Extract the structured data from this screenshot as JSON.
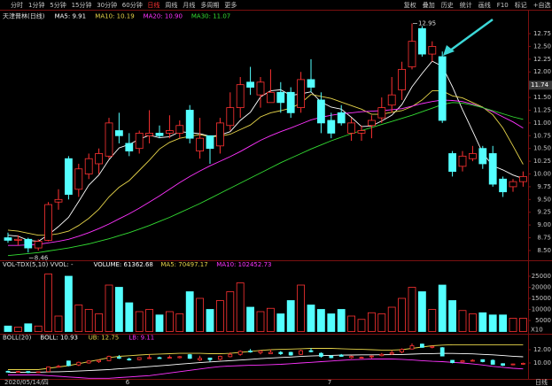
{
  "toolbar": {
    "left": [
      "分时",
      "1分钟",
      "5分钟",
      "15分钟",
      "30分钟",
      "60分钟",
      "日线",
      "周线",
      "月线",
      "多周期",
      "更多"
    ],
    "active": 6,
    "right": [
      "复权",
      "叠加",
      "历史",
      "统计",
      "画线",
      "F10",
      "标记",
      "+自选"
    ]
  },
  "period_label": "日线",
  "chart_data": [
    {
      "type": "candlestick",
      "title": "天津普林(日线)",
      "indicators": [
        {
          "text": "MA5: 9.91",
          "color": "#ffffff"
        },
        {
          "text": "MA10: 10.19",
          "color": "#e6d44a"
        },
        {
          "text": "MA20: 10.90",
          "color": "#ff33ff"
        },
        {
          "text": "MA30: 11.07",
          "color": "#33dd33"
        }
      ],
      "categories": [
        "2020/05/14/四",
        null,
        null,
        null,
        null,
        null,
        null,
        null,
        null,
        null,
        null,
        null,
        "6",
        null,
        null,
        null,
        null,
        null,
        null,
        null,
        null,
        null,
        null,
        null,
        null,
        null,
        null,
        null,
        null,
        null,
        null,
        null,
        "7",
        null,
        null,
        null,
        null,
        null,
        null,
        null,
        null,
        null,
        null,
        null,
        null,
        null,
        null,
        null,
        null,
        null,
        null,
        null
      ],
      "open": [
        8.75,
        8.7,
        8.72,
        8.55,
        8.7,
        9.45,
        10.3,
        9.7,
        10.0,
        10.2,
        10.35,
        10.85,
        10.6,
        10.5,
        10.75,
        10.8,
        10.8,
        10.8,
        11.25,
        10.45,
        10.75,
        10.55,
        10.95,
        11.3,
        11.8,
        11.55,
        11.4,
        11.6,
        11.6,
        11.3,
        11.85,
        11.45,
        11.05,
        11.2,
        10.8,
        10.8,
        10.95,
        11.1,
        11.35,
        11.65,
        12.1,
        12.85,
        12.35,
        12.3,
        10.4,
        10.15,
        10.3,
        10.5,
        10.4,
        9.9,
        9.75,
        9.85
      ],
      "high": [
        8.85,
        8.8,
        8.75,
        8.72,
        9.45,
        9.7,
        10.35,
        10.2,
        10.4,
        10.5,
        11.1,
        11.2,
        10.8,
        10.85,
        11.25,
        10.95,
        11.15,
        11.05,
        11.35,
        11.1,
        10.75,
        11.1,
        11.6,
        11.9,
        12.1,
        11.9,
        12.05,
        11.8,
        11.7,
        12.0,
        12.25,
        11.6,
        11.2,
        11.35,
        11.1,
        10.95,
        11.15,
        11.5,
        11.9,
        12.2,
        12.95,
        12.9,
        12.6,
        12.4,
        10.45,
        10.45,
        10.55,
        10.55,
        10.55,
        9.95,
        9.9,
        10.05
      ],
      "low": [
        8.65,
        8.6,
        8.46,
        8.5,
        8.68,
        9.3,
        9.5,
        9.55,
        9.9,
        10.0,
        10.3,
        10.6,
        10.35,
        10.4,
        10.6,
        10.7,
        10.7,
        10.7,
        10.6,
        10.3,
        10.2,
        10.4,
        10.85,
        11.1,
        11.55,
        11.3,
        11.4,
        11.2,
        11.1,
        11.2,
        11.6,
        10.8,
        10.7,
        10.95,
        10.65,
        10.65,
        10.7,
        11.0,
        11.2,
        11.45,
        12.05,
        12.3,
        12.2,
        11.0,
        9.95,
        10.05,
        10.25,
        10.1,
        9.75,
        9.55,
        9.65,
        9.75
      ],
      "close": [
        8.7,
        8.72,
        8.55,
        8.68,
        9.4,
        9.5,
        9.6,
        10.1,
        10.3,
        10.4,
        11.0,
        10.75,
        10.45,
        10.8,
        10.8,
        10.75,
        10.85,
        10.95,
        10.7,
        10.7,
        10.5,
        11.0,
        11.3,
        11.75,
        11.7,
        11.8,
        11.6,
        11.4,
        11.2,
        11.85,
        11.7,
        11.0,
        10.8,
        11.0,
        11.0,
        10.85,
        11.05,
        11.3,
        11.55,
        12.05,
        12.6,
        12.35,
        12.5,
        11.05,
        10.05,
        10.35,
        10.4,
        10.2,
        9.8,
        9.65,
        9.85,
        9.95
      ],
      "up_color": "#ff3232",
      "down_color": "#54ffff",
      "series": [
        {
          "color": "#ffffff",
          "values": [
            8.8,
            8.78,
            8.7,
            8.68,
            8.81,
            8.97,
            9.15,
            9.46,
            9.78,
            9.98,
            10.28,
            10.51,
            10.58,
            10.68,
            10.76,
            10.71,
            10.73,
            10.83,
            10.81,
            10.79,
            10.74,
            10.76,
            10.83,
            11.05,
            11.21,
            11.51,
            11.63,
            11.65,
            11.54,
            11.57,
            11.61,
            11.41,
            11.31,
            11.27,
            11.11,
            10.93,
            10.94,
            11.04,
            11.15,
            11.36,
            11.71,
            11.97,
            12.21,
            12.11,
            11.71,
            11.26,
            10.84,
            10.41,
            10.16,
            10.08,
            9.98,
            9.91
          ]
        },
        {
          "color": "#e6d44a",
          "values": [
            8.9,
            8.88,
            8.84,
            8.8,
            8.8,
            8.83,
            8.88,
            8.99,
            9.13,
            9.31,
            9.55,
            9.74,
            9.87,
            10.07,
            10.27,
            10.49,
            10.62,
            10.7,
            10.74,
            10.77,
            10.73,
            10.74,
            10.78,
            10.87,
            10.96,
            11.12,
            11.2,
            11.24,
            11.29,
            11.39,
            11.56,
            11.52,
            11.48,
            11.41,
            11.34,
            11.27,
            11.17,
            11.17,
            11.21,
            11.24,
            11.32,
            11.45,
            11.63,
            11.63,
            11.53,
            11.49,
            11.4,
            11.31,
            11.16,
            10.9,
            10.55,
            10.19
          ]
        },
        {
          "color": "#ff33ff",
          "values": [
            8.6,
            8.6,
            8.61,
            8.62,
            8.65,
            8.68,
            8.72,
            8.78,
            8.85,
            8.93,
            9.02,
            9.12,
            9.22,
            9.33,
            9.45,
            9.57,
            9.7,
            9.83,
            9.95,
            10.06,
            10.16,
            10.25,
            10.34,
            10.44,
            10.55,
            10.66,
            10.75,
            10.83,
            10.9,
            10.98,
            11.06,
            11.11,
            11.15,
            11.18,
            11.2,
            11.22,
            11.23,
            11.24,
            11.26,
            11.28,
            11.33,
            11.38,
            11.42,
            11.45,
            11.44,
            11.42,
            11.37,
            11.3,
            11.22,
            11.12,
            11.02,
            10.9
          ]
        },
        {
          "color": "#33dd33",
          "values": [
            8.4,
            8.42,
            8.44,
            8.46,
            8.49,
            8.52,
            8.55,
            8.59,
            8.63,
            8.68,
            8.73,
            8.79,
            8.85,
            8.92,
            8.99,
            9.07,
            9.15,
            9.24,
            9.33,
            9.42,
            9.52,
            9.62,
            9.72,
            9.82,
            9.92,
            10.02,
            10.12,
            10.22,
            10.31,
            10.4,
            10.49,
            10.57,
            10.65,
            10.72,
            10.79,
            10.85,
            10.91,
            10.97,
            11.03,
            11.09,
            11.15,
            11.22,
            11.29,
            11.36,
            11.4,
            11.39,
            11.35,
            11.3,
            11.24,
            11.18,
            11.12,
            11.07
          ]
        }
      ],
      "ylim": [
        8.35,
        12.95
      ],
      "yticks": [
        {
          "value": 8.5,
          "label": "8.50"
        },
        8.75,
        {
          "value": 9,
          "label": "9.00"
        },
        9.25,
        {
          "value": 9.5,
          "label": "9.50"
        },
        9.75,
        {
          "value": 10,
          "label": "10.00"
        },
        10.25,
        {
          "value": 10.5,
          "label": "10.50"
        },
        10.75,
        {
          "value": 11,
          "label": "11.00"
        },
        11.25,
        {
          "value": 11.5,
          "label": "11.50"
        },
        11.75,
        {
          "value": 12,
          "label": "12.00"
        },
        12.25,
        {
          "value": 12.5,
          "label": "12.50"
        },
        12.75
      ],
      "last_price": 11.74,
      "high_label": "12.95",
      "low_label": "8.46"
    },
    {
      "type": "volume",
      "title": "VOL-TDX(5,10)  VVOL: -",
      "indicators": [
        {
          "text": "VOLUME: 61362.68",
          "color": "#ffffff"
        },
        {
          "text": "MA5: 70497.17",
          "color": "#e6d44a"
        },
        {
          "text": "MA10: 102452.73",
          "color": "#ff33ff"
        }
      ],
      "values": [
        2500,
        2000,
        3500,
        2500,
        26000,
        7000,
        25000,
        12000,
        10000,
        8000,
        21000,
        20000,
        13000,
        9000,
        10000,
        7500,
        9000,
        8000,
        18000,
        15000,
        10000,
        14000,
        18000,
        22000,
        11000,
        9000,
        10500,
        8000,
        14000,
        21000,
        12000,
        10000,
        8000,
        10000,
        7000,
        5500,
        8500,
        8000,
        11000,
        15000,
        20000,
        18000,
        10000,
        21000,
        14000,
        9500,
        8000,
        8500,
        7500,
        7500,
        6000,
        6000
      ],
      "ylim": [
        0,
        28000
      ],
      "yticks": [
        5000,
        10000,
        15000,
        20000,
        25000
      ],
      "unit_label": "X10"
    },
    {
      "type": "boll",
      "title": "BOLL(20)",
      "indicators": [
        {
          "text": "BOLL: 10.93",
          "color": "#ffffff"
        },
        {
          "text": "UB: 12.75",
          "color": "#e6d44a"
        },
        {
          "text": "LB: 9.11",
          "color": "#ff33ff"
        }
      ],
      "series": [
        {
          "color": "#ffffff",
          "values": [
            8.6,
            8.6,
            8.61,
            8.62,
            8.65,
            8.68,
            8.72,
            8.78,
            8.85,
            8.93,
            9.02,
            9.12,
            9.22,
            9.33,
            9.45,
            9.57,
            9.7,
            9.83,
            9.95,
            10.06,
            10.16,
            10.25,
            10.34,
            10.44,
            10.55,
            10.66,
            10.75,
            10.83,
            10.9,
            10.98,
            11.06,
            11.11,
            11.15,
            11.18,
            11.2,
            11.22,
            11.23,
            11.24,
            11.26,
            11.28,
            11.33,
            11.38,
            11.42,
            11.45,
            11.44,
            11.42,
            11.37,
            11.3,
            11.22,
            11.12,
            11.02,
            10.93
          ]
        },
        {
          "color": "#e6d44a",
          "values": [
            9.0,
            9.0,
            9.0,
            9.0,
            9.2,
            9.4,
            9.6,
            9.9,
            10.2,
            10.5,
            10.8,
            11.0,
            11.1,
            11.2,
            11.3,
            11.35,
            11.4,
            11.45,
            11.45,
            11.45,
            11.4,
            11.4,
            11.45,
            11.6,
            11.75,
            11.9,
            12.0,
            12.05,
            12.1,
            12.15,
            12.2,
            12.2,
            12.2,
            12.15,
            12.1,
            12.05,
            12.0,
            11.95,
            11.95,
            12.0,
            12.2,
            12.4,
            12.6,
            12.7,
            12.75,
            12.75,
            12.75,
            12.75,
            12.75,
            12.75,
            12.75,
            12.75
          ]
        },
        {
          "color": "#ff33ff",
          "values": [
            8.2,
            8.2,
            8.2,
            8.2,
            8.1,
            8.0,
            7.9,
            7.8,
            7.7,
            7.7,
            7.7,
            7.8,
            7.9,
            8.0,
            8.1,
            8.3,
            8.5,
            8.7,
            8.9,
            9.1,
            9.3,
            9.45,
            9.55,
            9.6,
            9.65,
            9.7,
            9.75,
            9.8,
            9.9,
            10.0,
            10.1,
            10.2,
            10.3,
            10.4,
            10.5,
            10.55,
            10.6,
            10.6,
            10.6,
            10.55,
            10.45,
            10.35,
            10.25,
            10.2,
            10.1,
            10.0,
            9.85,
            9.7,
            9.5,
            9.35,
            9.2,
            9.11
          ]
        }
      ],
      "ylim": [
        7.6,
        13.2
      ],
      "yticks": [
        {
          "value": 10,
          "label": "10.00"
        },
        {
          "value": 12,
          "label": "12.00"
        }
      ]
    }
  ]
}
